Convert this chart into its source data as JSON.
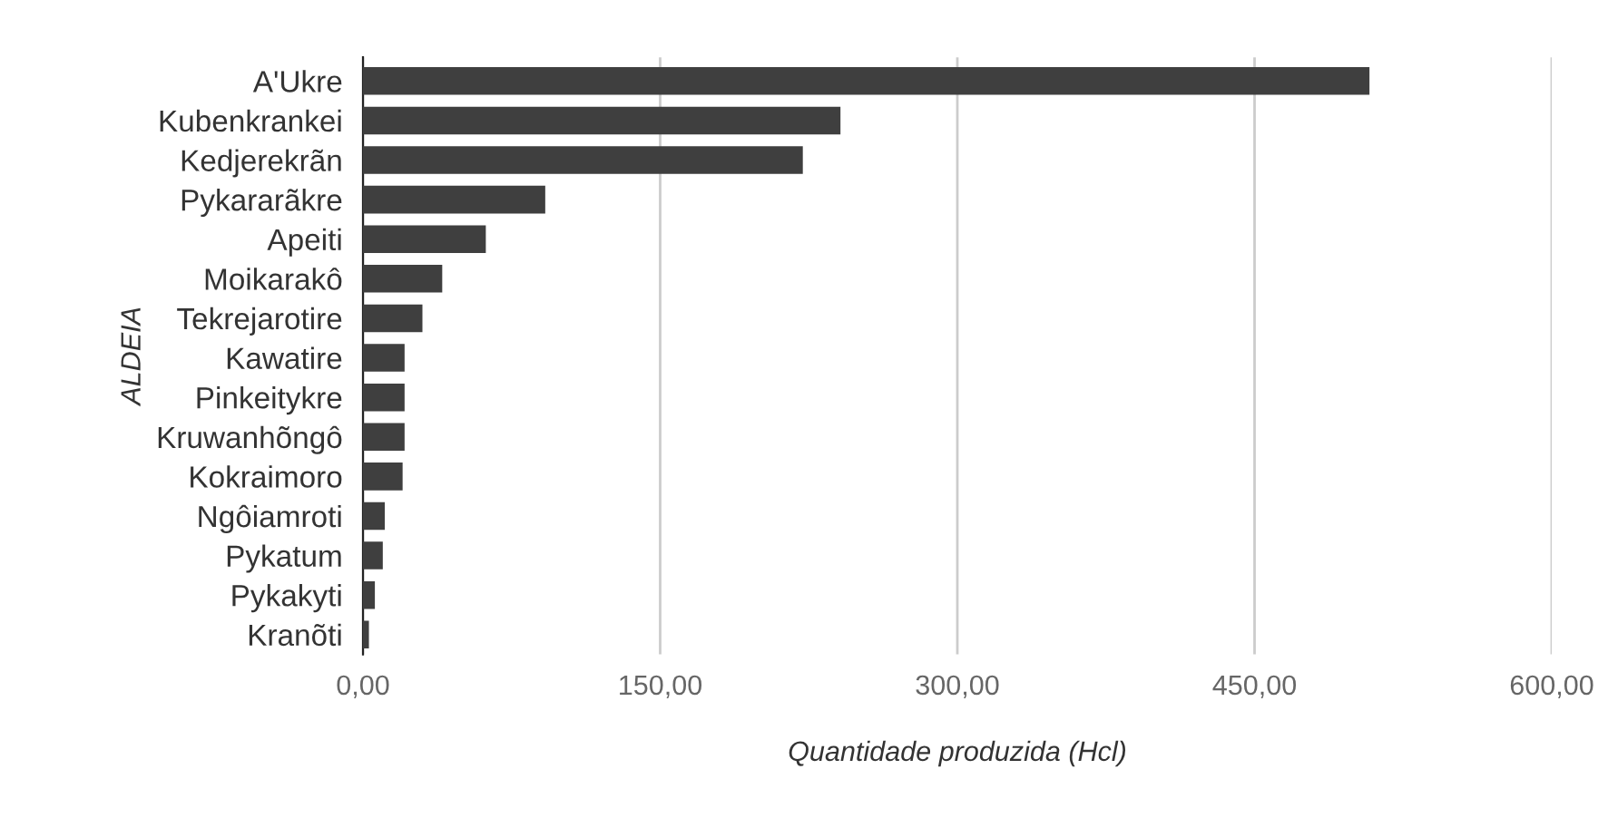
{
  "chart_data": {
    "type": "bar",
    "orientation": "horizontal",
    "xlabel": "Quantidade produzida (Hcl)",
    "ylabel": "ALDEIA",
    "categories": [
      "A'Ukre",
      "Kubenkrankei",
      "Kedjerekrãn",
      "Pykararãkre",
      "Apeiti",
      "Moikarakô",
      "Tekrejarotire",
      "Kawatire",
      "Pinkeitykre",
      "Kruwanhõngô",
      "Kokraimoro",
      "Ngôiamroti",
      "Pykatum",
      "Pykakyti",
      "Kranõti"
    ],
    "values": [
      508,
      241,
      222,
      92,
      62,
      40,
      30,
      21,
      21,
      21,
      20,
      11,
      10,
      6,
      3
    ],
    "color": "#3f3f3f",
    "xlim": [
      0,
      600
    ],
    "xticks": [
      {
        "value": 0,
        "label": "0,00"
      },
      {
        "value": 150,
        "label": "150,00"
      },
      {
        "value": 300,
        "label": "300,00"
      },
      {
        "value": 450,
        "label": "450,00"
      },
      {
        "value": 600,
        "label": "600,00"
      }
    ],
    "grid": "x"
  }
}
